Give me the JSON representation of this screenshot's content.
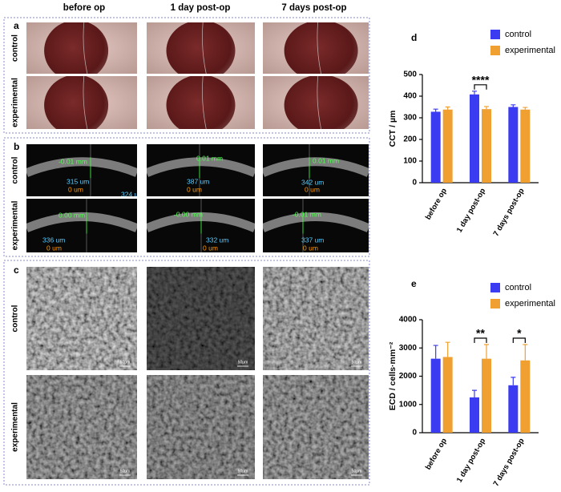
{
  "column_headers": [
    "before  op",
    "1 day post-op",
    "7 days post-op"
  ],
  "panels": {
    "a": {
      "label": "a",
      "rows": [
        "control",
        "experimental"
      ]
    },
    "b": {
      "label": "b",
      "rows": [
        "control",
        "experimental"
      ],
      "measurements": [
        [
          {
            "offset": "-0.01 mm",
            "thickness": "315 um",
            "baseline": "0 um",
            "extra": "324 u"
          },
          {
            "offset": "0.01 mm",
            "thickness": "387 um",
            "baseline": "0 um"
          },
          {
            "offset": "0.01 mm",
            "thickness": "342 um",
            "baseline": "0 um"
          }
        ],
        [
          {
            "offset": "0.00 mm",
            "thickness": "336 um",
            "baseline": "0 um"
          },
          {
            "offset": "-0.00 mm",
            "thickness": "332 um",
            "baseline": "0 um"
          },
          {
            "offset": "-0.01 mm",
            "thickness": "337 um",
            "baseline": "0 um"
          }
        ]
      ]
    },
    "c": {
      "label": "c",
      "rows": [
        "control",
        "experimental"
      ],
      "scale_label": "50μm"
    }
  },
  "chart_data": [
    {
      "type": "bar",
      "panel_label": "d",
      "y_label": "CCT / µm",
      "categories": [
        "before op",
        "1 day post-op",
        "7 days post-op"
      ],
      "series": [
        {
          "name": "control",
          "color": "#3b3bf2",
          "values": [
            328,
            408,
            350
          ],
          "errors": [
            12,
            15,
            10
          ]
        },
        {
          "name": "experimental",
          "color": "#f0a030",
          "values": [
            338,
            340,
            338
          ],
          "errors": [
            12,
            12,
            10
          ]
        }
      ],
      "ylim": [
        0,
        500
      ],
      "yticks": [
        0,
        100,
        200,
        300,
        400,
        500
      ],
      "annotations": [
        {
          "text": "****",
          "category": "1 day post-op"
        }
      ]
    },
    {
      "type": "bar",
      "panel_label": "e",
      "y_label": "ECD / cells·mm⁻²",
      "categories": [
        "before op",
        "1 day post-op",
        "7 days post-op"
      ],
      "series": [
        {
          "name": "control",
          "color": "#3b3bf2",
          "values": [
            2620,
            1250,
            1680
          ],
          "errors": [
            470,
            250,
            280
          ]
        },
        {
          "name": "experimental",
          "color": "#f0a030",
          "values": [
            2680,
            2620,
            2560
          ],
          "errors": [
            520,
            500,
            560
          ]
        }
      ],
      "ylim": [
        0,
        4000
      ],
      "yticks": [
        0,
        1000,
        2000,
        3000,
        4000
      ],
      "annotations": [
        {
          "text": "**",
          "category": "1 day post-op"
        },
        {
          "text": "*",
          "category": "7 days post-op"
        }
      ]
    }
  ]
}
